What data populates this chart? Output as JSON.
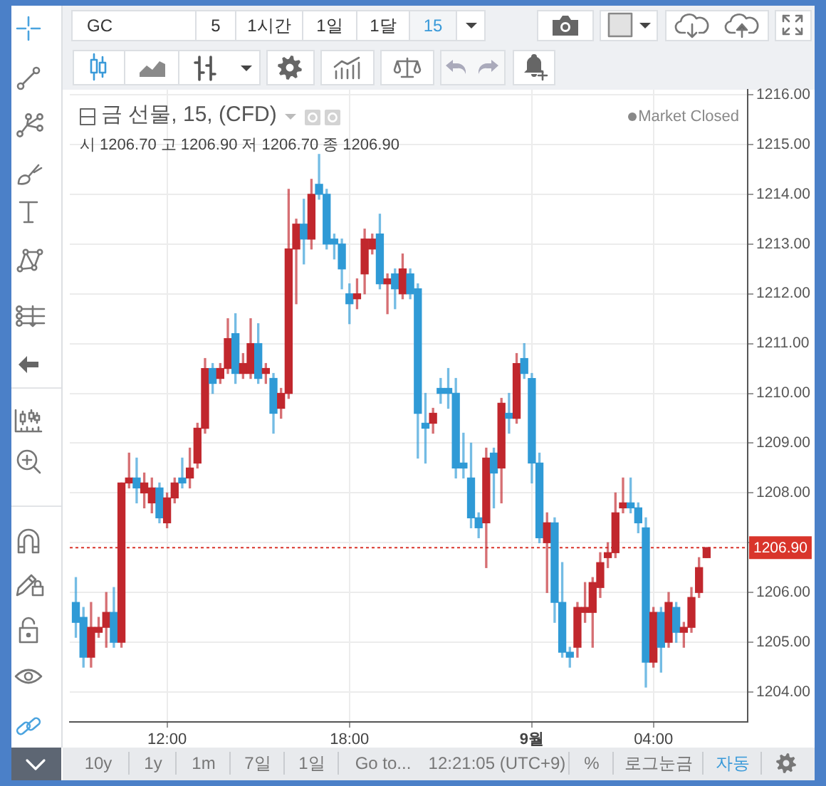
{
  "chart_data": {
    "type": "candlestick",
    "title": "금 선물, 15, (CFD)",
    "subtitle": "시 1206.70 고 1206.90 저 1206.70 종 1206.90",
    "x": [
      "--08-31T09:00",
      "--08-31T09:15",
      "--08-31T09:30",
      "--08-31T09:45",
      "--08-31T10:00",
      "--08-31T10:15",
      "--08-31T10:30",
      "--08-31T10:45",
      "--08-31T11:00",
      "--08-31T11:15",
      "--08-31T11:30",
      "--08-31T11:45",
      "--08-31T12:00",
      "--08-31T12:15",
      "--08-31T12:30",
      "--08-31T12:45",
      "--08-31T13:00",
      "--08-31T13:15",
      "--08-31T13:30",
      "--08-31T13:45",
      "--08-31T14:00",
      "--08-31T14:15",
      "--08-31T14:30",
      "--08-31T14:45",
      "--08-31T15:00",
      "--08-31T15:15",
      "--08-31T15:30",
      "--08-31T15:45",
      "--08-31T16:00",
      "--08-31T16:15",
      "--08-31T16:30",
      "--08-31T16:45",
      "--08-31T17:00",
      "--08-31T17:15",
      "--08-31T17:30",
      "--08-31T17:45",
      "--08-31T18:00",
      "--08-31T18:15",
      "--08-31T18:30",
      "--08-31T18:45",
      "--08-31T19:00",
      "--08-31T19:15",
      "--08-31T19:30",
      "--08-31T19:45",
      "--08-31T20:00",
      "--08-31T20:15",
      "--08-31T20:30",
      "--08-31T20:45",
      "--08-31T21:00",
      "--08-31T21:15",
      "--08-31T21:30",
      "--08-31T21:45",
      "--08-31T22:00",
      "--08-31T22:15",
      "--08-31T22:30",
      "--08-31T22:45",
      "--08-31T23:00",
      "--08-31T23:15",
      "--08-31T23:30",
      "--08-31T23:45",
      "--09-01T00:00",
      "--09-01T00:15",
      "--09-01T00:30",
      "--09-01T00:45",
      "--09-01T01:00",
      "--09-01T01:15",
      "--09-01T01:30",
      "--09-01T01:45",
      "--09-01T02:00",
      "--09-01T02:15",
      "--09-01T02:30",
      "--09-01T02:45",
      "--09-01T03:00",
      "--09-01T03:15",
      "--09-01T03:30",
      "--09-01T03:45",
      "--09-01T04:00",
      "--09-01T04:15",
      "--09-01T04:30",
      "--09-01T04:45",
      "--09-01T05:00",
      "--09-01T05:15",
      "--09-01T05:30",
      "--09-01T05:45"
    ],
    "ohlc": [
      [
        1205.8,
        1206.3,
        1205.1,
        1205.4
      ],
      [
        1205.5,
        1205.7,
        1204.5,
        1204.7
      ],
      [
        1204.7,
        1205.8,
        1204.5,
        1205.3
      ],
      [
        1205.2,
        1205.5,
        1205.1,
        1205.3
      ],
      [
        1205.3,
        1206.0,
        1204.9,
        1205.6
      ],
      [
        1205.6,
        1206.1,
        1204.9,
        1205.0
      ],
      [
        1205.0,
        1208.2,
        1204.9,
        1208.2
      ],
      [
        1208.2,
        1208.8,
        1208.1,
        1208.3
      ],
      [
        1208.3,
        1208.7,
        1207.8,
        1208.1
      ],
      [
        1208.0,
        1208.4,
        1207.7,
        1208.2
      ],
      [
        1207.8,
        1208.3,
        1207.6,
        1208.1
      ],
      [
        1208.1,
        1208.2,
        1207.4,
        1207.5
      ],
      [
        1207.4,
        1208.0,
        1207.3,
        1207.9
      ],
      [
        1207.9,
        1208.3,
        1207.8,
        1208.2
      ],
      [
        1208.3,
        1208.7,
        1208.1,
        1208.2
      ],
      [
        1208.3,
        1208.9,
        1208.1,
        1208.5
      ],
      [
        1208.6,
        1209.4,
        1208.5,
        1209.3
      ],
      [
        1209.3,
        1210.7,
        1209.2,
        1210.5
      ],
      [
        1210.5,
        1210.6,
        1210.0,
        1210.2
      ],
      [
        1210.3,
        1210.6,
        1210.2,
        1210.5
      ],
      [
        1210.5,
        1211.5,
        1210.4,
        1211.1
      ],
      [
        1211.2,
        1211.6,
        1210.2,
        1210.4
      ],
      [
        1210.4,
        1210.8,
        1210.3,
        1210.6
      ],
      [
        1210.4,
        1211.5,
        1210.3,
        1211.0
      ],
      [
        1211.0,
        1211.4,
        1210.2,
        1210.3
      ],
      [
        1210.4,
        1210.6,
        1210.2,
        1210.5
      ],
      [
        1210.3,
        1210.4,
        1209.2,
        1209.6
      ],
      [
        1209.7,
        1210.1,
        1209.5,
        1210.0
      ],
      [
        1210.0,
        1214.1,
        1209.9,
        1212.9
      ],
      [
        1212.9,
        1213.5,
        1211.8,
        1213.4
      ],
      [
        1213.4,
        1213.9,
        1212.6,
        1213.1
      ],
      [
        1213.1,
        1214.3,
        1212.9,
        1214.0
      ],
      [
        1214.2,
        1214.8,
        1213.9,
        1214.0
      ],
      [
        1214.0,
        1214.1,
        1212.9,
        1213.0
      ],
      [
        1213.1,
        1213.2,
        1212.7,
        1213.0
      ],
      [
        1213.0,
        1213.1,
        1212.1,
        1212.5
      ],
      [
        1212.0,
        1212.2,
        1211.4,
        1211.8
      ],
      [
        1211.9,
        1212.3,
        1211.7,
        1212.0
      ],
      [
        1212.4,
        1213.3,
        1212.0,
        1213.1
      ],
      [
        1212.9,
        1213.2,
        1212.8,
        1213.1
      ],
      [
        1213.2,
        1213.6,
        1212.1,
        1212.2
      ],
      [
        1212.2,
        1212.4,
        1211.6,
        1212.3
      ],
      [
        1212.4,
        1212.5,
        1211.7,
        1212.1
      ],
      [
        1212.0,
        1212.8,
        1211.9,
        1212.5
      ],
      [
        1212.4,
        1212.5,
        1211.9,
        1212.0
      ],
      [
        1212.1,
        1212.2,
        1208.7,
        1209.6
      ],
      [
        1209.4,
        1210.0,
        1208.6,
        1209.3
      ],
      [
        1209.4,
        1209.7,
        1209.2,
        1209.6
      ],
      [
        1210.1,
        1210.3,
        1209.8,
        1210.0
      ],
      [
        1210.1,
        1210.5,
        1209.7,
        1210.0
      ],
      [
        1210.0,
        1210.3,
        1208.3,
        1208.5
      ],
      [
        1208.6,
        1209.2,
        1208.3,
        1208.5
      ],
      [
        1208.3,
        1209.0,
        1207.3,
        1207.5
      ],
      [
        1207.5,
        1207.6,
        1207.1,
        1207.3
      ],
      [
        1207.4,
        1208.9,
        1206.5,
        1208.7
      ],
      [
        1208.8,
        1208.9,
        1207.7,
        1208.4
      ],
      [
        1208.5,
        1209.9,
        1207.8,
        1209.8
      ],
      [
        1209.6,
        1210.0,
        1209.2,
        1209.5
      ],
      [
        1209.5,
        1210.8,
        1209.4,
        1210.6
      ],
      [
        1210.7,
        1211.0,
        1210.3,
        1210.4
      ],
      [
        1210.3,
        1210.4,
        1208.2,
        1208.6
      ],
      [
        1208.6,
        1208.8,
        1207.0,
        1207.1
      ],
      [
        1207.0,
        1207.6,
        1206.0,
        1207.4
      ],
      [
        1207.4,
        1207.5,
        1205.4,
        1205.8
      ],
      [
        1205.8,
        1206.6,
        1204.7,
        1204.8
      ],
      [
        1204.8,
        1204.9,
        1204.5,
        1204.7
      ],
      [
        1204.9,
        1205.8,
        1204.7,
        1205.7
      ],
      [
        1205.6,
        1206.2,
        1205.4,
        1205.7
      ],
      [
        1205.6,
        1206.3,
        1204.9,
        1206.2
      ],
      [
        1206.1,
        1206.8,
        1205.9,
        1206.6
      ],
      [
        1206.7,
        1207.0,
        1206.5,
        1206.8
      ],
      [
        1206.8,
        1208.0,
        1206.7,
        1207.6
      ],
      [
        1207.7,
        1208.3,
        1207.6,
        1207.8
      ],
      [
        1207.8,
        1208.3,
        1207.6,
        1207.7
      ],
      [
        1207.7,
        1207.8,
        1207.2,
        1207.4
      ],
      [
        1207.3,
        1207.5,
        1204.1,
        1204.6
      ],
      [
        1204.6,
        1205.7,
        1204.5,
        1205.6
      ],
      [
        1205.6,
        1205.7,
        1204.4,
        1204.9
      ],
      [
        1205.0,
        1206.0,
        1204.9,
        1205.8
      ],
      [
        1205.7,
        1205.8,
        1205.0,
        1205.2
      ],
      [
        1205.2,
        1205.4,
        1204.9,
        1205.3
      ],
      [
        1205.3,
        1206.1,
        1205.2,
        1205.9
      ],
      [
        1206.0,
        1206.7,
        1205.9,
        1206.5
      ],
      [
        1206.7,
        1206.9,
        1206.7,
        1206.9
      ]
    ],
    "colors": [
      "#2f9ad6",
      "#2f9ad6",
      "#c1272d",
      "#c1272d",
      "#c1272d",
      "#2f9ad6",
      "#c1272d",
      "#c1272d",
      "#2f9ad6",
      "#c1272d",
      "#c1272d",
      "#2f9ad6",
      "#c1272d",
      "#c1272d",
      "#2f9ad6",
      "#c1272d",
      "#c1272d",
      "#c1272d",
      "#2f9ad6",
      "#c1272d",
      "#c1272d",
      "#2f9ad6",
      "#c1272d",
      "#c1272d",
      "#2f9ad6",
      "#c1272d",
      "#2f9ad6",
      "#c1272d",
      "#c1272d",
      "#c1272d",
      "#2f9ad6",
      "#c1272d",
      "#2f9ad6",
      "#2f9ad6",
      "#2f9ad6",
      "#2f9ad6",
      "#2f9ad6",
      "#c1272d",
      "#c1272d",
      "#c1272d",
      "#2f9ad6",
      "#c1272d",
      "#2f9ad6",
      "#c1272d",
      "#2f9ad6",
      "#2f9ad6",
      "#2f9ad6",
      "#c1272d",
      "#2f9ad6",
      "#2f9ad6",
      "#2f9ad6",
      "#2f9ad6",
      "#2f9ad6",
      "#2f9ad6",
      "#c1272d",
      "#2f9ad6",
      "#c1272d",
      "#2f9ad6",
      "#c1272d",
      "#2f9ad6",
      "#2f9ad6",
      "#2f9ad6",
      "#c1272d",
      "#2f9ad6",
      "#2f9ad6",
      "#2f9ad6",
      "#c1272d",
      "#c1272d",
      "#c1272d",
      "#c1272d",
      "#c1272d",
      "#c1272d",
      "#c1272d",
      "#2f9ad6",
      "#2f9ad6",
      "#2f9ad6",
      "#c1272d",
      "#2f9ad6",
      "#c1272d",
      "#2f9ad6",
      "#c1272d",
      "#c1272d",
      "#c1272d",
      "#c1272d"
    ],
    "xlim": [
      "--08-31T08:48",
      "--09-01T07:06"
    ],
    "xticks": [
      {
        "value": "--08-31T12:00",
        "label": "12:00"
      },
      {
        "value": "--08-31T18:00",
        "label": "18:00"
      },
      {
        "value": "--09-01",
        "label": "9월"
      },
      {
        "value": "--09-01T04:00",
        "label": "04:00"
      }
    ],
    "ylim": [
      1203.4,
      1216.1
    ],
    "yticks": [
      {
        "value": 1204,
        "label": "1204.00"
      },
      {
        "value": 1205,
        "label": "1205.00"
      },
      {
        "value": 1206,
        "label": "1206.00"
      },
      {
        "value": 1207,
        "label": null
      },
      {
        "value": 1208,
        "label": "1208.00"
      },
      {
        "value": 1209,
        "label": "1209.00"
      },
      {
        "value": 1210,
        "label": "1210.00"
      },
      {
        "value": 1211,
        "label": "1211.00"
      },
      {
        "value": 1212,
        "label": "1212.00"
      },
      {
        "value": 1213,
        "label": "1213.00"
      },
      {
        "value": 1214,
        "label": "1214.00"
      },
      {
        "value": 1215,
        "label": "1215.00"
      },
      {
        "value": 1216,
        "label": "1216.00"
      }
    ],
    "grid": true,
    "ref_lines": [
      {
        "axis": "y",
        "value": 1206.9,
        "label": "1206.90",
        "color": "#d9352b",
        "line_style": "dotted"
      }
    ],
    "annotations": [
      "Market Closed",
      "GC",
      "5",
      "1시간",
      "1일",
      "1달",
      "15",
      "10y",
      "1y",
      "1m",
      "7일",
      "1일",
      "Go to...",
      "12:21:05 (UTC+9)",
      "%",
      "로그눈금",
      "자동"
    ]
  }
}
